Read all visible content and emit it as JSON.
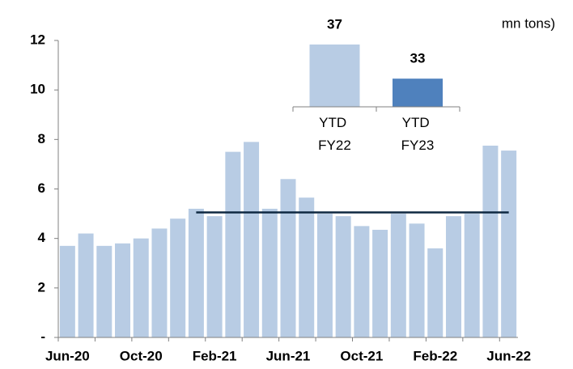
{
  "chart_data": [
    {
      "type": "bar",
      "axis_label": "mn tons)",
      "categories": [
        "Jun-20",
        null,
        null,
        null,
        "Oct-20",
        null,
        null,
        null,
        "Feb-21",
        null,
        null,
        null,
        "Jun-21",
        null,
        null,
        null,
        "Oct-21",
        null,
        null,
        null,
        "Feb-22",
        null,
        null,
        null,
        "Jun-22"
      ],
      "series": [
        {
          "type": "bar",
          "color": "#b8cce4",
          "values": [
            3.7,
            4.2,
            3.7,
            3.8,
            4.0,
            4.4,
            4.8,
            5.2,
            4.9,
            7.5,
            7.9,
            5.2,
            6.4,
            5.65,
            5.0,
            4.9,
            4.5,
            4.35,
            5.0,
            4.6,
            3.6,
            4.9,
            5.0,
            7.75,
            7.55
          ]
        },
        {
          "type": "line",
          "color": "#0e2841",
          "values": [
            null,
            null,
            null,
            null,
            null,
            null,
            null,
            5.05,
            5.05,
            5.05,
            5.05,
            5.05,
            5.05,
            5.05,
            5.05,
            5.05,
            5.05,
            5.05,
            5.05,
            5.05,
            5.05,
            5.05,
            5.05,
            5.05,
            5.05
          ]
        }
      ],
      "ylim": [
        0,
        12
      ],
      "yticks": [
        {
          "value": 0,
          "label": "-"
        },
        2,
        4,
        6,
        8,
        10,
        12
      ]
    },
    {
      "type": "bar",
      "categories": [
        "YTD FY22",
        "YTD FY23"
      ],
      "values": [
        37,
        33
      ],
      "colors": [
        "#b8cce4",
        "#4f81bd"
      ],
      "ylim": [
        29.7,
        37
      ]
    }
  ]
}
